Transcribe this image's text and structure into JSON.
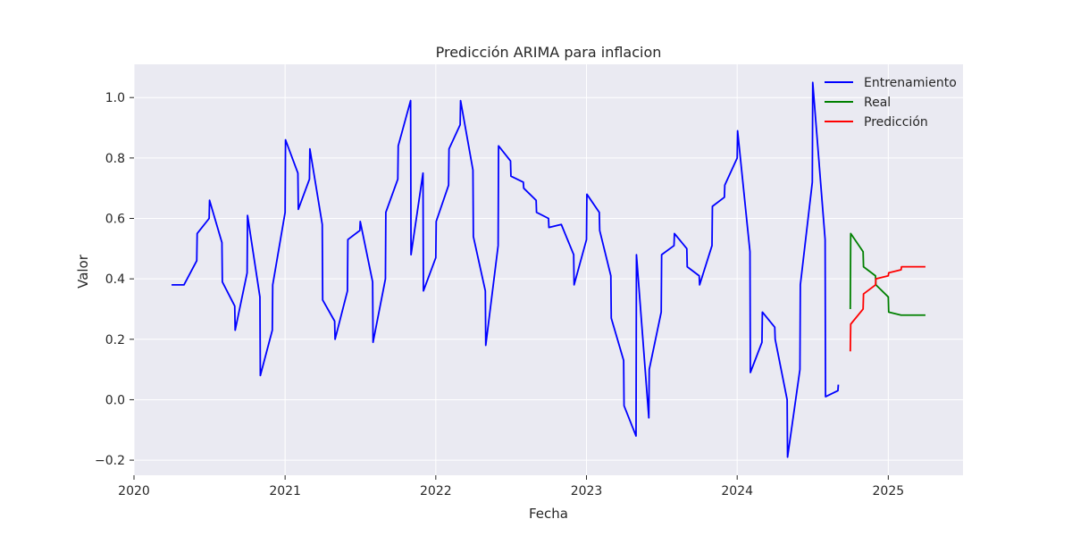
{
  "chart_data": {
    "type": "line",
    "title": "Predicción ARIMA para inflacion",
    "xlabel": "Fecha",
    "ylabel": "Valor",
    "xlim": [
      "2020-01-01",
      "2025-07-01"
    ],
    "ylim": [
      -0.25,
      1.11
    ],
    "x_ticks": [
      "2020",
      "2021",
      "2022",
      "2023",
      "2024",
      "2025"
    ],
    "y_ticks": [
      "−0.2",
      "0.0",
      "0.2",
      "0.4",
      "0.6",
      "0.8",
      "1.0"
    ],
    "grid": true,
    "legend_position": "top-right",
    "colors": {
      "background": "#eaeaf2",
      "grid": "#ffffff",
      "Entrenamiento": "#0000ff",
      "Real": "#008000",
      "Predicción": "#ff0000"
    },
    "series": [
      {
        "name": "Entrenamiento",
        "points": [
          [
            "2020-04-01",
            0.38
          ],
          [
            "2020-05-01",
            0.38
          ],
          [
            "2020-06-01",
            0.46
          ],
          [
            "2020-06-02",
            0.55
          ],
          [
            "2020-07-01",
            0.6
          ],
          [
            "2020-07-02",
            0.66
          ],
          [
            "2020-08-01",
            0.52
          ],
          [
            "2020-08-02",
            0.39
          ],
          [
            "2020-09-01",
            0.31
          ],
          [
            "2020-09-02",
            0.23
          ],
          [
            "2020-10-01",
            0.42
          ],
          [
            "2020-10-02",
            0.61
          ],
          [
            "2020-11-01",
            0.34
          ],
          [
            "2020-11-02",
            0.08
          ],
          [
            "2020-12-01",
            0.23
          ],
          [
            "2020-12-02",
            0.38
          ],
          [
            "2021-01-01",
            0.62
          ],
          [
            "2021-01-02",
            0.86
          ],
          [
            "2021-02-01",
            0.75
          ],
          [
            "2021-02-02",
            0.63
          ],
          [
            "2021-03-01",
            0.73
          ],
          [
            "2021-03-02",
            0.83
          ],
          [
            "2021-04-01",
            0.58
          ],
          [
            "2021-04-02",
            0.33
          ],
          [
            "2021-05-01",
            0.26
          ],
          [
            "2021-05-02",
            0.2
          ],
          [
            "2021-06-01",
            0.36
          ],
          [
            "2021-06-02",
            0.53
          ],
          [
            "2021-07-01",
            0.56
          ],
          [
            "2021-07-02",
            0.59
          ],
          [
            "2021-08-01",
            0.39
          ],
          [
            "2021-08-02",
            0.19
          ],
          [
            "2021-09-01",
            0.4
          ],
          [
            "2021-09-02",
            0.62
          ],
          [
            "2021-10-01",
            0.73
          ],
          [
            "2021-10-02",
            0.84
          ],
          [
            "2021-11-01",
            0.99
          ],
          [
            "2021-11-02",
            0.48
          ],
          [
            "2021-12-01",
            0.75
          ],
          [
            "2021-12-02",
            0.36
          ],
          [
            "2022-01-01",
            0.47
          ],
          [
            "2022-01-02",
            0.59
          ],
          [
            "2022-02-01",
            0.71
          ],
          [
            "2022-02-02",
            0.83
          ],
          [
            "2022-03-01",
            0.91
          ],
          [
            "2022-03-02",
            0.99
          ],
          [
            "2022-04-01",
            0.76
          ],
          [
            "2022-04-02",
            0.54
          ],
          [
            "2022-05-01",
            0.36
          ],
          [
            "2022-05-02",
            0.18
          ],
          [
            "2022-06-01",
            0.51
          ],
          [
            "2022-06-02",
            0.84
          ],
          [
            "2022-07-01",
            0.79
          ],
          [
            "2022-07-02",
            0.74
          ],
          [
            "2022-08-01",
            0.72
          ],
          [
            "2022-08-02",
            0.7
          ],
          [
            "2022-09-01",
            0.66
          ],
          [
            "2022-09-02",
            0.62
          ],
          [
            "2022-10-01",
            0.6
          ],
          [
            "2022-10-02",
            0.57
          ],
          [
            "2022-11-01",
            0.58
          ],
          [
            "2022-12-01",
            0.48
          ],
          [
            "2022-12-02",
            0.38
          ],
          [
            "2023-01-01",
            0.53
          ],
          [
            "2023-01-02",
            0.68
          ],
          [
            "2023-02-01",
            0.62
          ],
          [
            "2023-02-02",
            0.56
          ],
          [
            "2023-03-01",
            0.41
          ],
          [
            "2023-03-02",
            0.27
          ],
          [
            "2023-04-01",
            0.13
          ],
          [
            "2023-04-02",
            -0.02
          ],
          [
            "2023-05-01",
            -0.12
          ],
          [
            "2023-05-02",
            0.48
          ],
          [
            "2023-06-01",
            -0.06
          ],
          [
            "2023-06-02",
            0.1
          ],
          [
            "2023-07-01",
            0.29
          ],
          [
            "2023-07-02",
            0.48
          ],
          [
            "2023-08-01",
            0.51
          ],
          [
            "2023-08-02",
            0.55
          ],
          [
            "2023-09-01",
            0.5
          ],
          [
            "2023-09-02",
            0.44
          ],
          [
            "2023-10-01",
            0.41
          ],
          [
            "2023-10-02",
            0.38
          ],
          [
            "2023-11-01",
            0.51
          ],
          [
            "2023-11-02",
            0.64
          ],
          [
            "2023-12-01",
            0.67
          ],
          [
            "2023-12-02",
            0.71
          ],
          [
            "2024-01-01",
            0.8
          ],
          [
            "2024-01-02",
            0.89
          ],
          [
            "2024-02-01",
            0.49
          ],
          [
            "2024-02-02",
            0.09
          ],
          [
            "2024-03-01",
            0.19
          ],
          [
            "2024-03-02",
            0.29
          ],
          [
            "2024-04-01",
            0.24
          ],
          [
            "2024-04-02",
            0.2
          ],
          [
            "2024-05-01",
            0.0
          ],
          [
            "2024-05-02",
            -0.19
          ],
          [
            "2024-06-01",
            0.1
          ],
          [
            "2024-06-02",
            0.38
          ],
          [
            "2024-07-01",
            0.72
          ],
          [
            "2024-07-02",
            1.05
          ],
          [
            "2024-08-01",
            0.53
          ],
          [
            "2024-08-02",
            0.01
          ],
          [
            "2024-09-01",
            0.03
          ],
          [
            "2024-09-02",
            0.05
          ]
        ]
      },
      {
        "name": "Real",
        "points": [
          [
            "2024-10-01",
            0.3
          ],
          [
            "2024-10-02",
            0.55
          ],
          [
            "2024-11-01",
            0.49
          ],
          [
            "2024-11-02",
            0.44
          ],
          [
            "2024-12-01",
            0.41
          ],
          [
            "2024-12-02",
            0.38
          ],
          [
            "2025-01-01",
            0.34
          ],
          [
            "2025-01-02",
            0.29
          ],
          [
            "2025-02-01",
            0.28
          ],
          [
            "2025-02-02",
            0.28
          ],
          [
            "2025-03-01",
            0.28
          ],
          [
            "2025-04-01",
            0.28
          ]
        ]
      },
      {
        "name": "Predicción",
        "points": [
          [
            "2024-10-01",
            0.16
          ],
          [
            "2024-10-02",
            0.25
          ],
          [
            "2024-11-01",
            0.3
          ],
          [
            "2024-11-02",
            0.35
          ],
          [
            "2024-12-01",
            0.38
          ],
          [
            "2024-12-02",
            0.4
          ],
          [
            "2025-01-01",
            0.41
          ],
          [
            "2025-01-02",
            0.42
          ],
          [
            "2025-02-01",
            0.43
          ],
          [
            "2025-02-02",
            0.44
          ],
          [
            "2025-03-01",
            0.44
          ],
          [
            "2025-04-01",
            0.44
          ]
        ]
      }
    ]
  }
}
